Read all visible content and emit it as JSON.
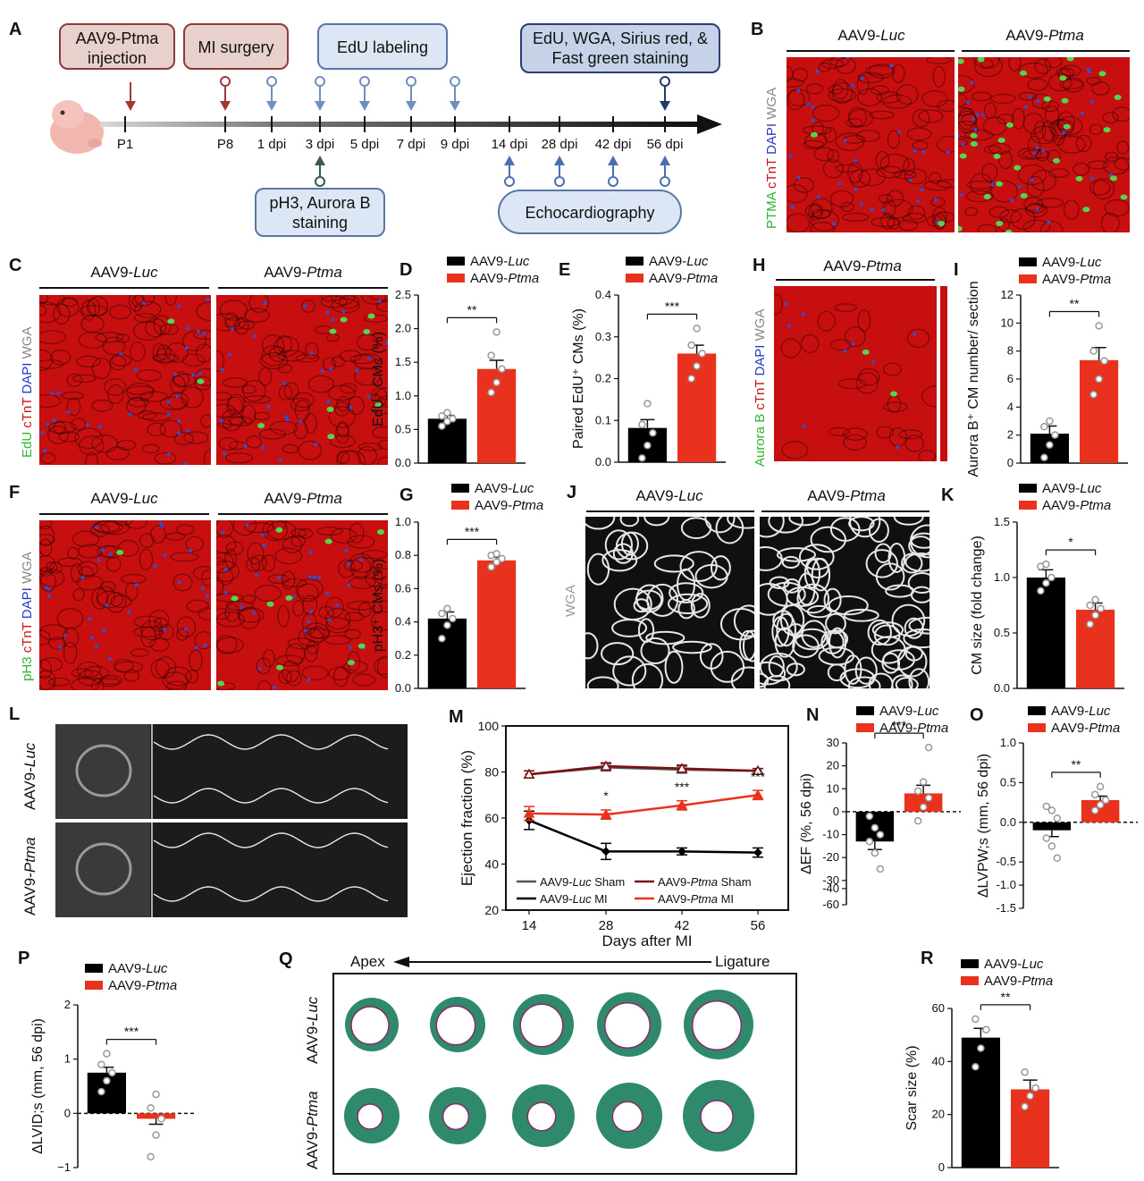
{
  "panels": {
    "A": "A",
    "B": "B",
    "C": "C",
    "D": "D",
    "E": "E",
    "F": "F",
    "G": "G",
    "H": "H",
    "I": "I",
    "J": "J",
    "K": "K",
    "L": "L",
    "M": "M",
    "N": "N",
    "O": "O",
    "P": "P",
    "Q": "Q",
    "R": "R"
  },
  "groups": {
    "luc": "AAV9-Luc",
    "ptma": "AAV9-Ptma",
    "luc_prefix": "AAV9-",
    "luc_it": "Luc",
    "ptma_it": "Ptma"
  },
  "timeline": {
    "box_injection_1": "AAV9-Ptma",
    "box_injection_2": "injection",
    "box_mi": "MI surgery",
    "box_edu": "EdU labeling",
    "box_stain_1": "EdU, WGA, Sirius red, &",
    "box_stain_2": "Fast green staining",
    "box_ph3_1": "pH3, Aurora B",
    "box_ph3_2": "staining",
    "box_echo": "Echocardiography",
    "ticks": [
      "P1",
      "P8",
      "1 dpi",
      "3 dpi",
      "5 dpi",
      "7 dpi",
      "9 dpi",
      "14 dpi",
      "28 dpi",
      "42 dpi",
      "56 dpi"
    ]
  },
  "stain_labels": {
    "B": [
      "PTMA",
      " cTnT",
      " DAPI",
      " WGA"
    ],
    "C": [
      "EdU",
      " cTnT",
      " DAPI",
      " WGA"
    ],
    "F": [
      "pH3",
      " cTnT",
      " DAPI",
      " WGA"
    ],
    "H": [
      "Aurora B",
      " cTnT",
      " DAPI",
      " WGA"
    ],
    "J": "WGA"
  },
  "colors": {
    "luc": "#000000",
    "ptma": "#e8321e",
    "red_tissue": "#c80f0f",
    "green": "#2fb52f",
    "blue": "#2838c8",
    "gray": "#9a9a9a",
    "teal": "#2e8a6a"
  },
  "chart_data": [
    {
      "panel": "D",
      "type": "bar",
      "categories": [
        "AAV9-Luc",
        "AAV9-Ptma"
      ],
      "values": [
        0.66,
        1.4
      ],
      "errors": [
        0.05,
        0.13
      ],
      "points": [
        [
          0.55,
          0.62,
          0.66,
          0.7,
          0.75
        ],
        [
          1.05,
          1.2,
          1.4,
          1.6,
          1.95
        ]
      ],
      "ylabel": "EdU⁺ CMs (%)",
      "ylim": [
        0,
        2.5
      ],
      "yticks": [
        "0.0",
        "0.5",
        "1.0",
        "1.5",
        "2.0",
        "2.5"
      ],
      "sig": "**"
    },
    {
      "panel": "E",
      "type": "bar",
      "categories": [
        "AAV9-Luc",
        "AAV9-Ptma"
      ],
      "values": [
        0.082,
        0.26
      ],
      "errors": [
        0.02,
        0.02
      ],
      "points": [
        [
          0.01,
          0.04,
          0.07,
          0.09,
          0.14
        ],
        [
          0.2,
          0.23,
          0.26,
          0.28,
          0.32
        ]
      ],
      "ylabel": "Paired EdU⁺ CMs (%)",
      "ylim": [
        0,
        0.4
      ],
      "yticks": [
        "0.0",
        "0.1",
        "0.2",
        "0.3",
        "0.4"
      ],
      "sig": "***"
    },
    {
      "panel": "G",
      "type": "bar",
      "categories": [
        "AAV9-Luc",
        "AAV9-Ptma"
      ],
      "values": [
        0.42,
        0.77
      ],
      "errors": [
        0.04,
        0.02
      ],
      "points": [
        [
          0.3,
          0.38,
          0.42,
          0.45,
          0.48
        ],
        [
          0.73,
          0.76,
          0.78,
          0.8,
          0.81
        ]
      ],
      "ylabel": "pH3⁺ CMs (%)",
      "ylim": [
        0,
        1.0
      ],
      "yticks": [
        "0.0",
        "0.2",
        "0.4",
        "0.6",
        "0.8",
        "1.0"
      ],
      "sig": "***"
    },
    {
      "panel": "I",
      "type": "bar",
      "categories": [
        "AAV9-Luc",
        "AAV9-Ptma"
      ],
      "values": [
        2.1,
        7.35
      ],
      "errors": [
        0.55,
        0.9
      ],
      "points": [
        [
          0.4,
          1.3,
          2.0,
          2.6,
          3.0
        ],
        [
          4.9,
          6.0,
          7.3,
          8.0,
          9.8
        ]
      ],
      "ylabel": "Aurora B⁺ CM number/ section",
      "ylim": [
        0,
        12
      ],
      "yticks": [
        "0",
        "2",
        "4",
        "6",
        "8",
        "10",
        "12"
      ],
      "sig": "**"
    },
    {
      "panel": "K",
      "type": "bar",
      "categories": [
        "AAV9-Luc",
        "AAV9-Ptma"
      ],
      "values": [
        1.0,
        0.71
      ],
      "errors": [
        0.07,
        0.06
      ],
      "points": [
        [
          0.88,
          0.95,
          1.0,
          1.1,
          1.12
        ],
        [
          0.58,
          0.66,
          0.72,
          0.75,
          0.8
        ]
      ],
      "ylabel": "CM size (fold change)",
      "ylim": [
        0,
        1.5
      ],
      "yticks": [
        "0.0",
        "0.5",
        "1.0",
        "1.5"
      ],
      "sig": "*"
    },
    {
      "panel": "M",
      "type": "line",
      "x": [
        14,
        28,
        42,
        56
      ],
      "xlabel": "Days after MI",
      "ylabel": "Ejection fraction (%)",
      "ylim": [
        20,
        100
      ],
      "yticks": [
        "20",
        "40",
        "60",
        "80",
        "100"
      ],
      "series": [
        {
          "name": "AAV9-Luc Sham",
          "values": [
            79,
            82,
            81,
            80.5
          ],
          "errors": [
            1.5,
            1.5,
            1.5,
            1
          ]
        },
        {
          "name": "AAV9-Ptma Sham",
          "values": [
            79,
            82.5,
            81.5,
            80.5
          ],
          "errors": [
            1.5,
            1.5,
            1.5,
            1
          ]
        },
        {
          "name": "AAV9-Luc MI",
          "values": [
            59,
            45.5,
            45.5,
            45
          ],
          "errors": [
            4,
            3.5,
            1.5,
            2
          ]
        },
        {
          "name": "AAV9-Ptma MI",
          "values": [
            62,
            61.5,
            65.5,
            70
          ],
          "errors": [
            3,
            2,
            2,
            2
          ]
        }
      ],
      "sig": [
        "",
        "*",
        "***",
        "***"
      ]
    },
    {
      "panel": "N",
      "type": "bar",
      "categories": [
        "AAV9-Luc",
        "AAV9-Ptma"
      ],
      "values": [
        -13,
        8
      ],
      "errors": [
        3.5,
        3.5
      ],
      "points": [
        [
          -2,
          -7,
          -10,
          -13,
          -18,
          -25
        ],
        [
          -4,
          2,
          6,
          9,
          13,
          28
        ]
      ],
      "ylabel": "ΔEF (%, 56 dpi)",
      "ylim": [
        -60,
        30
      ],
      "yticks": [
        "30",
        "20",
        "10",
        "0",
        "-10",
        "-20",
        "-30",
        "-40",
        "-60"
      ],
      "sig": "***"
    },
    {
      "panel": "O",
      "type": "bar",
      "categories": [
        "AAV9-Luc",
        "AAV9-Ptma"
      ],
      "values": [
        -0.1,
        0.28
      ],
      "errors": [
        0.08,
        0.05
      ],
      "points": [
        [
          0.2,
          0.15,
          0.05,
          -0.2,
          -0.3,
          -0.45
        ],
        [
          0.15,
          0.22,
          0.28,
          0.35,
          0.45
        ]
      ],
      "ylabel": "ΔLVPW;s (mm, 56 dpi)",
      "ylim": [
        -1.5,
        1.0
      ],
      "yticks": [
        "1.0",
        "0.5",
        "0.0",
        "-0.5",
        "-1.0",
        "-1.5"
      ],
      "sig": "**"
    },
    {
      "panel": "P",
      "type": "bar",
      "categories": [
        "AAV9-Luc",
        "AAV9-Ptma"
      ],
      "values": [
        0.75,
        -0.1
      ],
      "errors": [
        0.1,
        0.1
      ],
      "points": [
        [
          0.4,
          0.6,
          0.75,
          0.9,
          1.1
        ],
        [
          -0.8,
          -0.4,
          -0.1,
          0.1,
          0.35
        ]
      ],
      "ylabel": "ΔLVID;s (mm, 56 dpi)",
      "ylim": [
        -1,
        2
      ],
      "yticks": [
        "2",
        "1",
        "0",
        "−1"
      ],
      "sig": "***"
    },
    {
      "panel": "R",
      "type": "bar",
      "categories": [
        "AAV9-Luc",
        "AAV9-Ptma"
      ],
      "values": [
        49,
        29.5
      ],
      "errors": [
        3.5,
        3.5
      ],
      "points": [
        [
          38,
          45,
          52,
          56
        ],
        [
          23,
          27,
          30,
          36
        ]
      ],
      "ylabel": "Scar size (%)",
      "ylim": [
        0,
        60
      ],
      "yticks": [
        "0",
        "20",
        "40",
        "60"
      ],
      "sig": "**"
    }
  ],
  "panelL": {
    "row1": "AAV9-Luc",
    "row2": "AAV9-Ptma"
  },
  "panelQ": {
    "apex": "Apex",
    "ligature": "Ligature",
    "row1": "AAV9-Luc",
    "row2": "AAV9-Ptma"
  }
}
